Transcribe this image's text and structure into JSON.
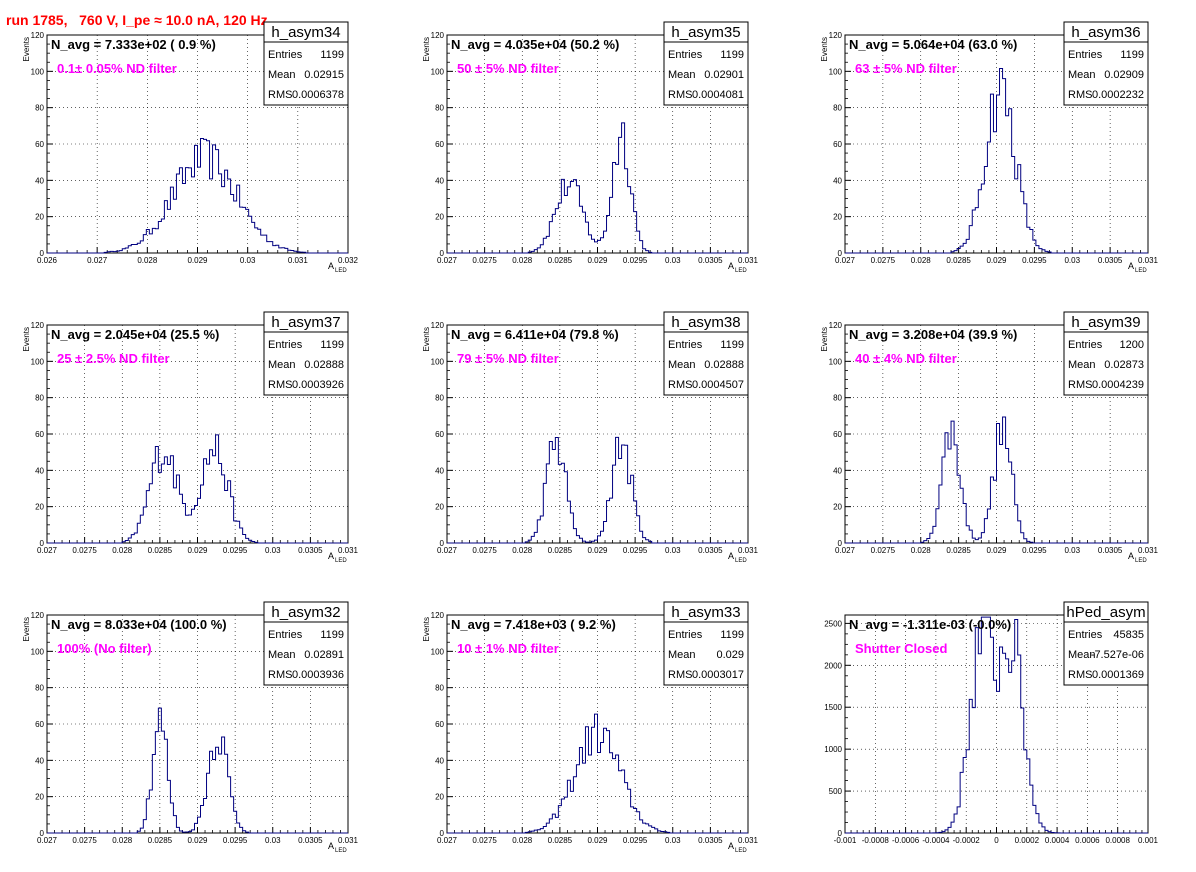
{
  "run_label": "run 1785,   760 V, I_pe ≈ 10.0 nA, 120 Hz",
  "colors": {
    "run_label": "#ff0000",
    "annotation": "#ff00ff",
    "histogram": "#000080",
    "grid": "#000000"
  },
  "chart_data": [
    {
      "type": "histogram",
      "name": "h_asym34",
      "header": "N_avg = 7.333e+02 ( 0.9 %)",
      "annotation": "0.1± 0.05% ND filter",
      "stats": {
        "Entries": "1199",
        "Mean": "0.02915",
        "RMS": "0.0006378"
      },
      "xlabel": "A",
      "xlabel_sub": "LED",
      "ylabel": "Events",
      "xlim": [
        0.026,
        0.032
      ],
      "ylim": [
        0,
        120
      ],
      "xticks": [
        "0.026",
        "0.027",
        "0.028",
        "0.029",
        "0.03",
        "0.031",
        "0.032"
      ],
      "yticks": [
        "0",
        "20",
        "40",
        "60",
        "80",
        "100",
        "120"
      ],
      "grid": true,
      "stats_position": "top-right",
      "shape": {
        "peaks": [
          {
            "center": 0.02915,
            "sigma": 0.00064,
            "height": 52
          }
        ]
      }
    },
    {
      "type": "histogram",
      "name": "h_asym35",
      "header": "N_avg = 4.035e+04 (50.2 %)",
      "annotation": "50 ± 5% ND filter",
      "stats": {
        "Entries": "1199",
        "Mean": "0.02901",
        "RMS": "0.0004081"
      },
      "xlabel": "A",
      "xlabel_sub": "LED",
      "ylabel": "Events",
      "xlim": [
        0.027,
        0.031
      ],
      "ylim": [
        0,
        120
      ],
      "xticks": [
        "0.027",
        "0.0275",
        "0.028",
        "0.0285",
        "0.029",
        "0.0295",
        "0.03",
        "0.0305",
        "0.031"
      ],
      "yticks": [
        "0",
        "20",
        "40",
        "60",
        "80",
        "100",
        "120"
      ],
      "grid": true,
      "stats_position": "top-right",
      "shape": {
        "peaks": [
          {
            "center": 0.02862,
            "sigma": 0.00018,
            "height": 38
          },
          {
            "center": 0.02932,
            "sigma": 0.00012,
            "height": 66
          }
        ]
      }
    },
    {
      "type": "histogram",
      "name": "h_asym36",
      "header": "N_avg = 5.064e+04 (63.0 %)",
      "annotation": "63 ± 5% ND filter",
      "stats": {
        "Entries": "1199",
        "Mean": "0.02909",
        "RMS": "0.0002232"
      },
      "xlabel": "A",
      "xlabel_sub": "LED",
      "ylabel": "Events",
      "xlim": [
        0.027,
        0.031
      ],
      "ylim": [
        0,
        120
      ],
      "xticks": [
        "0.027",
        "0.0275",
        "0.028",
        "0.0285",
        "0.029",
        "0.0295",
        "0.03",
        "0.0305",
        "0.031"
      ],
      "yticks": [
        "0",
        "20",
        "40",
        "60",
        "80",
        "100",
        "120"
      ],
      "grid": true,
      "stats_position": "top-right",
      "shape": {
        "peaks": [
          {
            "center": 0.02905,
            "sigma": 0.0002,
            "height": 90
          }
        ]
      }
    },
    {
      "type": "histogram",
      "name": "h_asym37",
      "header": "N_avg = 2.045e+04 (25.5 %)",
      "annotation": "25 ± 2.5% ND filter",
      "stats": {
        "Entries": "1199",
        "Mean": "0.02888",
        "RMS": "0.0003926"
      },
      "xlabel": "A",
      "xlabel_sub": "LED",
      "ylabel": "Events",
      "xlim": [
        0.027,
        0.031
      ],
      "ylim": [
        0,
        120
      ],
      "xticks": [
        "0.027",
        "0.0275",
        "0.028",
        "0.0285",
        "0.029",
        "0.0295",
        "0.03",
        "0.0305",
        "0.031"
      ],
      "yticks": [
        "0",
        "20",
        "40",
        "60",
        "80",
        "100",
        "120"
      ],
      "grid": true,
      "stats_position": "top-right",
      "shape": {
        "peaks": [
          {
            "center": 0.02855,
            "sigma": 0.00018,
            "height": 52
          },
          {
            "center": 0.02922,
            "sigma": 0.00018,
            "height": 52
          }
        ]
      }
    },
    {
      "type": "histogram",
      "name": "h_asym38",
      "header": "N_avg = 6.411e+04 (79.8 %)",
      "annotation": "79 ± 5% ND filter",
      "stats": {
        "Entries": "1199",
        "Mean": "0.02888",
        "RMS": "0.0004507"
      },
      "xlabel": "A",
      "xlabel_sub": "LED",
      "ylabel": "Events",
      "xlim": [
        0.027,
        0.031
      ],
      "ylim": [
        0,
        120
      ],
      "xticks": [
        "0.027",
        "0.0275",
        "0.028",
        "0.0285",
        "0.029",
        "0.0295",
        "0.03",
        "0.0305",
        "0.031"
      ],
      "yticks": [
        "0",
        "20",
        "40",
        "60",
        "80",
        "100",
        "120"
      ],
      "grid": true,
      "stats_position": "top-right",
      "shape": {
        "peaks": [
          {
            "center": 0.02845,
            "sigma": 0.00013,
            "height": 55
          },
          {
            "center": 0.02932,
            "sigma": 0.00013,
            "height": 55
          }
        ]
      }
    },
    {
      "type": "histogram",
      "name": "h_asym39",
      "header": "N_avg = 3.208e+04 (39.9 %)",
      "annotation": "40 ± 4% ND filter",
      "stats": {
        "Entries": "1200",
        "Mean": "0.02873",
        "RMS": "0.0004239"
      },
      "xlabel": "A",
      "xlabel_sub": "LED",
      "ylabel": "Events",
      "xlim": [
        0.027,
        0.031
      ],
      "ylim": [
        0,
        120
      ],
      "xticks": [
        "0.027",
        "0.0275",
        "0.028",
        "0.0285",
        "0.029",
        "0.0295",
        "0.03",
        "0.0305",
        "0.031"
      ],
      "yticks": [
        "0",
        "20",
        "40",
        "60",
        "80",
        "100",
        "120"
      ],
      "grid": true,
      "stats_position": "top-right",
      "shape": {
        "peaks": [
          {
            "center": 0.0284,
            "sigma": 0.00012,
            "height": 62
          },
          {
            "center": 0.02908,
            "sigma": 0.00012,
            "height": 62
          }
        ]
      }
    },
    {
      "type": "histogram",
      "name": "h_asym32",
      "header": "N_avg = 8.033e+04 (100.0 %)",
      "annotation": "100% (No filter)",
      "stats": {
        "Entries": "1199",
        "Mean": "0.02891",
        "RMS": "0.0003936"
      },
      "xlabel": "A",
      "xlabel_sub": "LED",
      "ylabel": "Events",
      "xlim": [
        0.027,
        0.031
      ],
      "ylim": [
        0,
        120
      ],
      "xticks": [
        "0.027",
        "0.0275",
        "0.028",
        "0.0285",
        "0.029",
        "0.0295",
        "0.03",
        "0.0305",
        "0.031"
      ],
      "yticks": [
        "0",
        "20",
        "40",
        "60",
        "80",
        "100",
        "120"
      ],
      "grid": true,
      "stats_position": "top-right",
      "shape": {
        "peaks": [
          {
            "center": 0.0285,
            "sigma": 0.0001,
            "height": 62
          },
          {
            "center": 0.02927,
            "sigma": 0.00013,
            "height": 55
          }
        ]
      }
    },
    {
      "type": "histogram",
      "name": "h_asym33",
      "header": "N_avg = 7.418e+03 ( 9.2 %)",
      "annotation": "10 ± 1% ND filter",
      "stats": {
        "Entries": "1199",
        "Mean": "0.029",
        "RMS": "0.0003017"
      },
      "xlabel": "A",
      "xlabel_sub": "LED",
      "ylabel": "Events",
      "xlim": [
        0.027,
        0.031
      ],
      "ylim": [
        0,
        120
      ],
      "xticks": [
        "0.027",
        "0.0275",
        "0.028",
        "0.0285",
        "0.029",
        "0.0295",
        "0.03",
        "0.0305",
        "0.031"
      ],
      "yticks": [
        "0",
        "20",
        "40",
        "60",
        "80",
        "100",
        "120"
      ],
      "grid": true,
      "stats_position": "top-right",
      "shape": {
        "peaks": [
          {
            "center": 0.029,
            "sigma": 0.0003,
            "height": 55
          }
        ]
      }
    },
    {
      "type": "histogram",
      "name": "hPed_asym",
      "header": "N_avg = -1.311e-03 (-0.0%)",
      "annotation": "Shutter Closed",
      "stats": {
        "Entries": "45835",
        "Mean": "-7.527e-06",
        "RMS": "0.0001369"
      },
      "xlabel": "",
      "xlabel_sub": "",
      "ylabel": "",
      "xlim": [
        -0.001,
        0.001
      ],
      "ylim": [
        0,
        2600
      ],
      "xticks": [
        "-0.001",
        "-0.0008",
        "-0.0006",
        "-0.0004",
        "-0.0002",
        "0",
        "0.0002",
        "0.0004",
        "0.0006",
        "0.0008",
        "0.001"
      ],
      "yticks": [
        "0",
        "500",
        "1000",
        "1500",
        "2000",
        "2500"
      ],
      "grid": true,
      "stats_position": "top-right",
      "shape": {
        "peaks": [
          {
            "center": -0.0001,
            "sigma": 8e-05,
            "height": 2250
          },
          {
            "center": 0.0001,
            "sigma": 8e-05,
            "height": 2200
          }
        ]
      }
    }
  ]
}
